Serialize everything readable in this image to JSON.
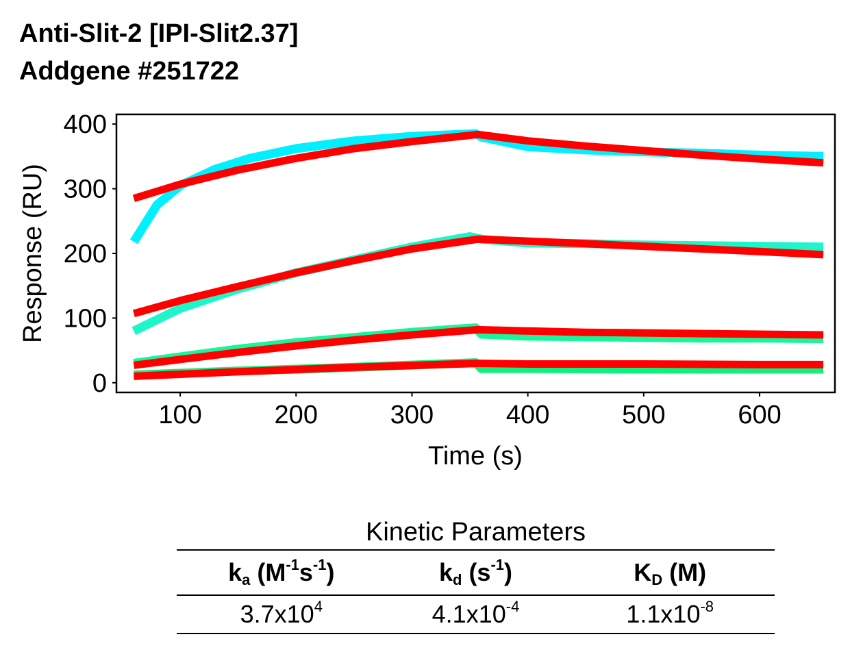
{
  "header": {
    "line1": "Anti-Slit-2 [IPI-Slit2.37]",
    "line2": "Addgene #251722"
  },
  "chart_data": {
    "type": "line",
    "title": "",
    "xlabel": "Time (s)",
    "ylabel": "Response (RU)",
    "xlim": [
      45,
      665
    ],
    "ylim": [
      -15,
      415
    ],
    "xticks": [
      100,
      200,
      300,
      400,
      500,
      600
    ],
    "yticks": [
      0,
      100,
      200,
      300,
      400
    ],
    "grid": false,
    "injection_end": 357,
    "colors": {
      "observed_1": "#00f0ff",
      "observed_2": "#1ef5c8",
      "observed_3": "#19f59a",
      "observed_4": "#10f080",
      "fit": "#ff0000"
    },
    "series": [
      {
        "name": "observed_1",
        "x": [
          60,
          80,
          100,
          130,
          160,
          200,
          250,
          300,
          355,
          360,
          400,
          450,
          500,
          550,
          600,
          655
        ],
        "y": [
          218,
          275,
          305,
          330,
          347,
          362,
          374,
          381,
          385,
          380,
          365,
          360,
          357,
          355,
          352,
          350
        ]
      },
      {
        "name": "observed_2",
        "x": [
          60,
          100,
          150,
          200,
          250,
          300,
          350,
          360,
          400,
          450,
          500,
          550,
          600,
          655
        ],
        "y": [
          80,
          115,
          145,
          170,
          190,
          210,
          226,
          222,
          216,
          215,
          213,
          212,
          211,
          210
        ]
      },
      {
        "name": "observed_3",
        "x": [
          60,
          100,
          150,
          200,
          250,
          300,
          355,
          360,
          400,
          450,
          500,
          550,
          600,
          655
        ],
        "y": [
          30,
          40,
          52,
          62,
          70,
          78,
          85,
          75,
          72,
          71,
          70,
          69,
          69,
          68
        ]
      },
      {
        "name": "observed_4",
        "x": [
          60,
          150,
          250,
          355,
          360,
          400,
          500,
          600,
          655
        ],
        "y": [
          12,
          18,
          24,
          31,
          22,
          22,
          21,
          21,
          21
        ]
      },
      {
        "name": "fit_1",
        "fit": true,
        "x": [
          60,
          100,
          150,
          200,
          250,
          300,
          357,
          400,
          450,
          500,
          550,
          600,
          655
        ],
        "y": [
          285,
          307,
          329,
          347,
          362,
          373,
          384,
          374,
          366,
          359,
          352,
          346,
          340
        ]
      },
      {
        "name": "fit_2",
        "fit": true,
        "x": [
          60,
          100,
          150,
          200,
          250,
          300,
          357,
          400,
          450,
          500,
          550,
          600,
          655
        ],
        "y": [
          107,
          127,
          149,
          170,
          189,
          207,
          222,
          219,
          215,
          211,
          207,
          203,
          198
        ]
      },
      {
        "name": "fit_3",
        "fit": true,
        "x": [
          60,
          100,
          150,
          200,
          250,
          300,
          357,
          400,
          450,
          500,
          550,
          600,
          655
        ],
        "y": [
          27,
          36,
          47,
          57,
          66,
          74,
          82,
          80,
          78,
          77,
          76,
          75,
          74
        ]
      },
      {
        "name": "fit_4",
        "fit": true,
        "x": [
          60,
          150,
          250,
          357,
          400,
          500,
          600,
          655
        ],
        "y": [
          10,
          17,
          24,
          30,
          29,
          29,
          28,
          28
        ]
      }
    ]
  },
  "kinetics": {
    "title": "Kinetic Parameters",
    "headers": [
      {
        "main": "k",
        "sub": "a",
        "pre": " (M",
        "sup1": "-1",
        "mid": "s",
        "sup2": "-1",
        "post": ")"
      },
      {
        "main": "k",
        "sub": "d",
        "pre": " (s",
        "sup1": "-1",
        "mid": "",
        "sup2": "",
        "post": ")"
      },
      {
        "main": "K",
        "sub": "D",
        "pre": " (M)",
        "sup1": "",
        "mid": "",
        "sup2": "",
        "post": ""
      }
    ],
    "values": [
      {
        "base": "3.7x10",
        "exp": "4"
      },
      {
        "base": "4.1x10",
        "exp": "-4"
      },
      {
        "base": "1.1x10",
        "exp": "-8"
      }
    ]
  }
}
